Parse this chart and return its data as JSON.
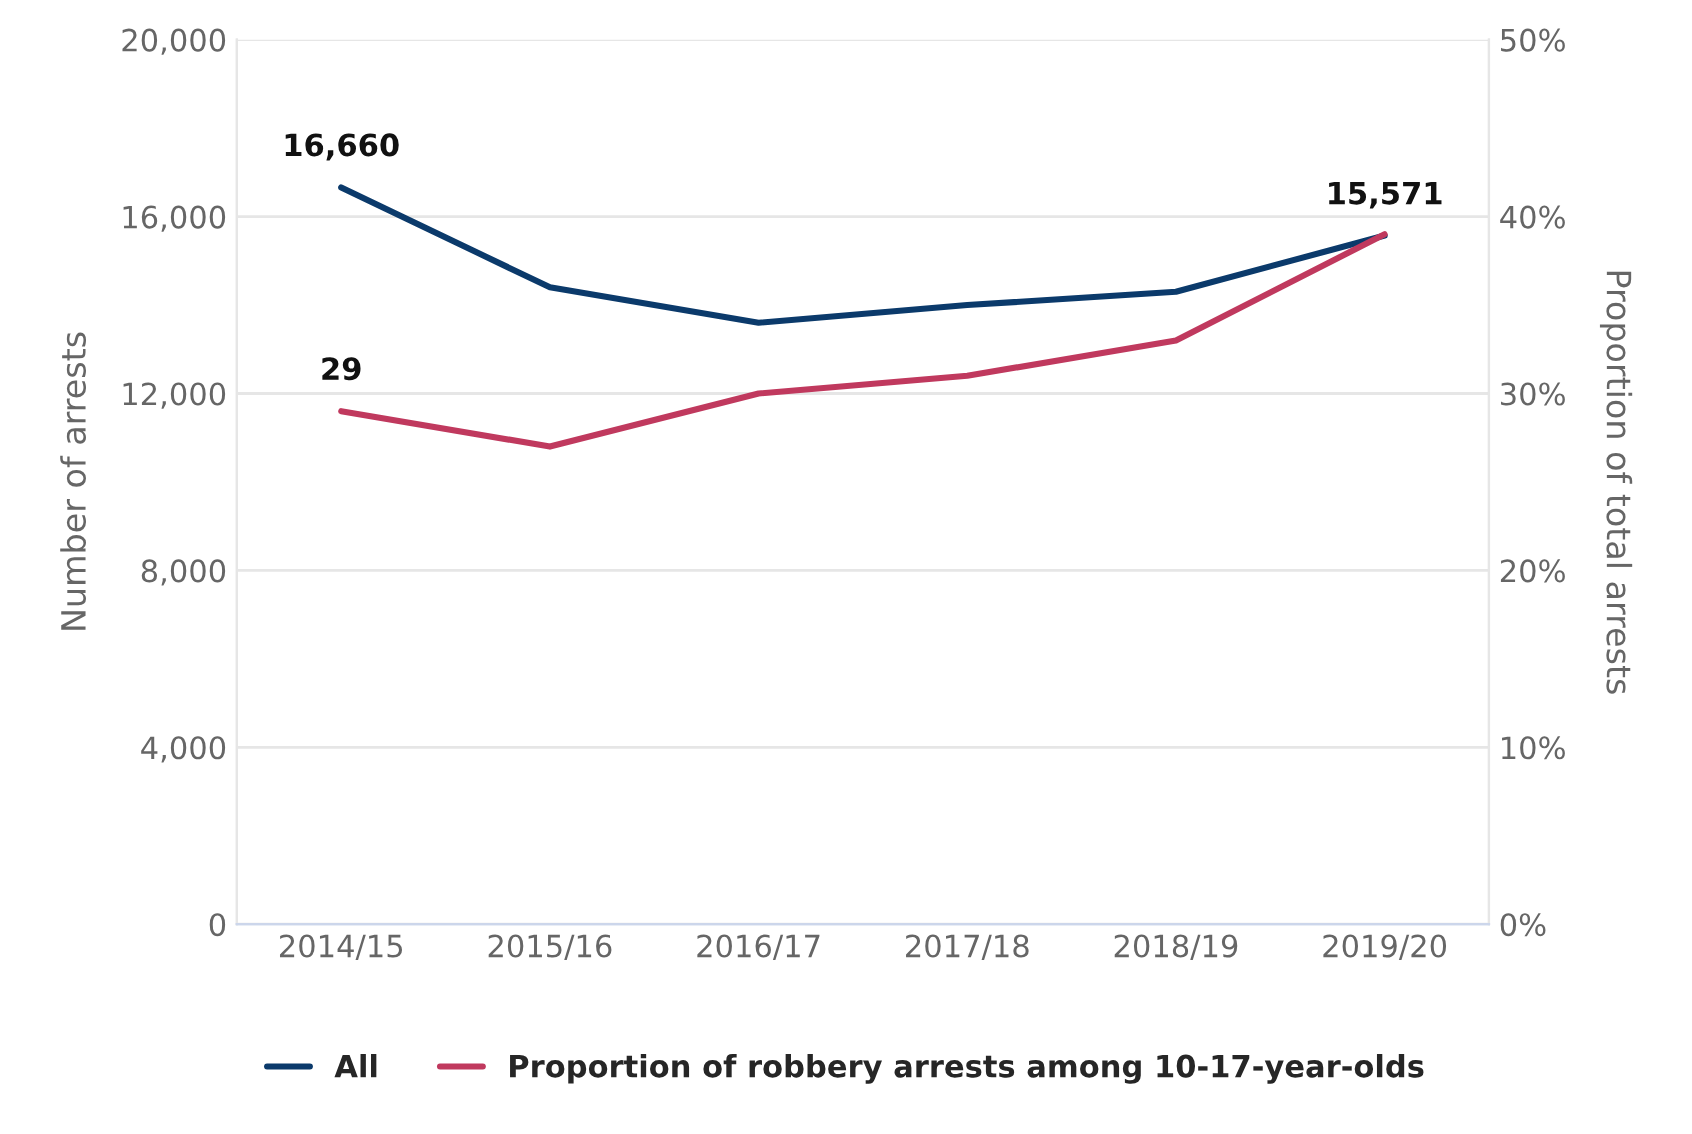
{
  "chart_data": {
    "type": "line",
    "ylabel": "Number of arrests",
    "y2label": "Proportion of total arrests",
    "categories": [
      "2014/15",
      "2015/16",
      "2016/17",
      "2017/18",
      "2018/19",
      "2019/20"
    ],
    "series": [
      {
        "name": "All",
        "color": "#0b3a6b",
        "values": [
          16660,
          14400,
          13600,
          14000,
          14300,
          15571
        ],
        "value_labels": [
          "16,660",
          null,
          null,
          null,
          null,
          "15,571"
        ]
      },
      {
        "name": "Proportion of robbery arrests among 10-17-year-olds",
        "color": "#c0395e",
        "axis": "y2",
        "values": [
          29,
          27,
          30,
          31,
          33,
          39
        ],
        "value_labels": [
          "29",
          null,
          null,
          null,
          null,
          null
        ]
      }
    ],
    "ylim": [
      0,
      20000
    ],
    "yticks": [
      {
        "value": 0,
        "label": "0"
      },
      {
        "value": 4000,
        "label": "4,000"
      },
      {
        "value": 8000,
        "label": "8,000"
      },
      {
        "value": 12000,
        "label": "12,000"
      },
      {
        "value": 16000,
        "label": "16,000"
      },
      {
        "value": 20000,
        "label": "20,000"
      }
    ],
    "y2lim": [
      0,
      50
    ],
    "y2ticks": [
      {
        "value": 0,
        "label": "0%"
      },
      {
        "value": 10,
        "label": "10%"
      },
      {
        "value": 20,
        "label": "20%"
      },
      {
        "value": 30,
        "label": "30%"
      },
      {
        "value": 40,
        "label": "40%"
      },
      {
        "value": 50,
        "label": "50%"
      }
    ],
    "grid": "y",
    "legend": "bottom",
    "marker": "none",
    "line_style": "solid"
  }
}
